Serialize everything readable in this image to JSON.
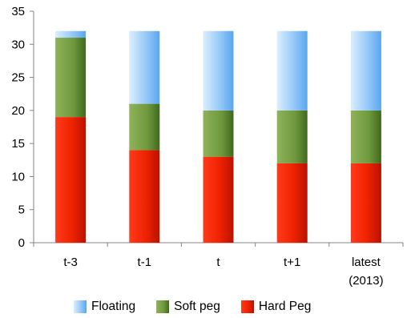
{
  "chart_data": {
    "type": "bar",
    "stacked": true,
    "categories": [
      "t-3",
      "t-1",
      "t",
      "t+1",
      "latest|(2013)"
    ],
    "series": [
      {
        "name": "Hard Peg",
        "color": "#e41a00",
        "values": [
          19,
          14,
          13,
          12,
          12
        ]
      },
      {
        "name": "Soft peg",
        "color": "#5e8a2c",
        "values": [
          12,
          7,
          7,
          8,
          8
        ]
      },
      {
        "name": "Floating",
        "color": "#6eb4f4",
        "values": [
          1,
          11,
          12,
          12,
          12
        ]
      }
    ],
    "legend_order": [
      "Floating",
      "Soft peg",
      "Hard Peg"
    ],
    "ylim": [
      0,
      35
    ],
    "yticks": [
      0,
      5,
      10,
      15,
      20,
      25,
      30,
      35
    ],
    "grid": false,
    "legend_position": "bottom"
  }
}
